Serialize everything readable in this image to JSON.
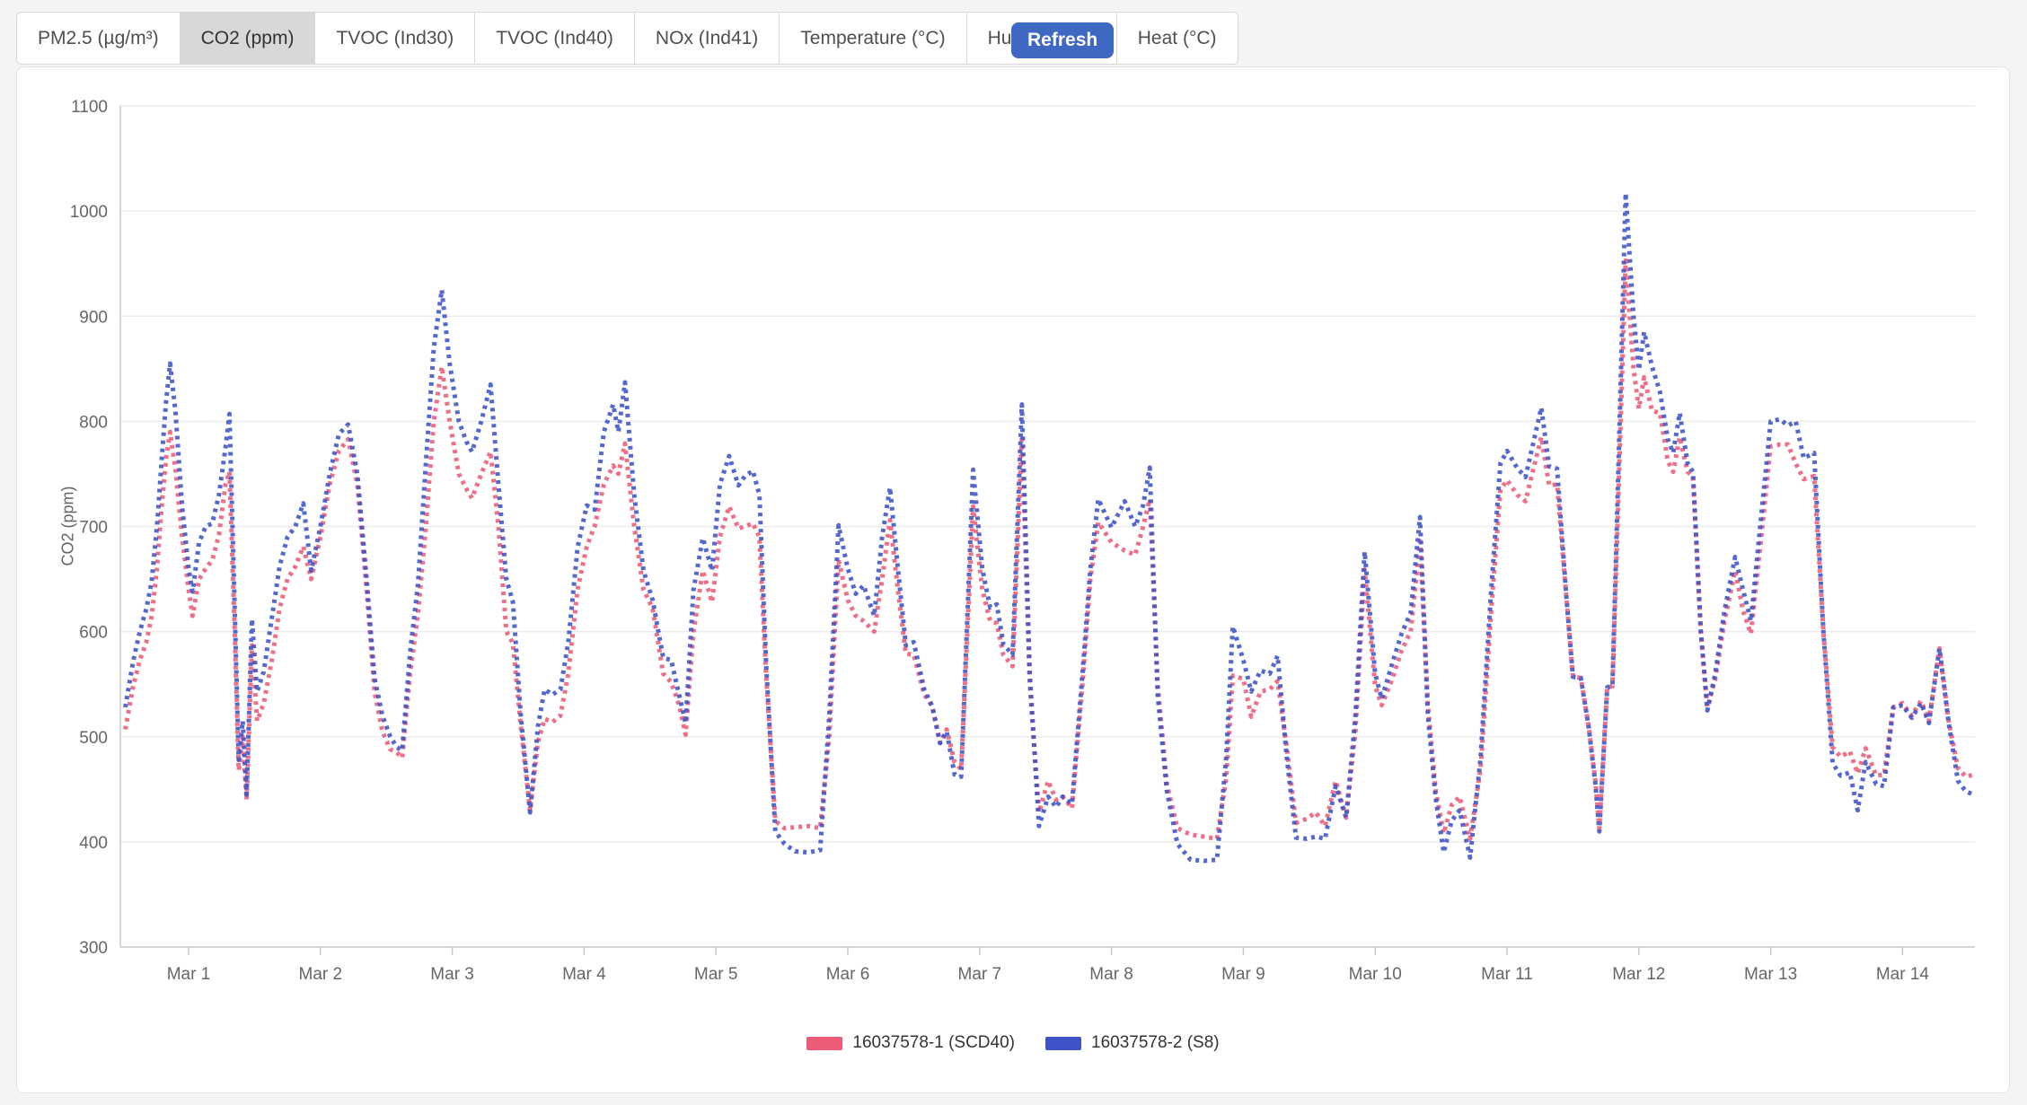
{
  "page": {
    "background": "#f4f4f5"
  },
  "toolbar": {
    "tabs": [
      {
        "label": "PM2.5 (µg/m³)",
        "active": false
      },
      {
        "label": "CO2 (ppm)",
        "active": true
      },
      {
        "label": "TVOC (Ind30)",
        "active": false
      },
      {
        "label": "TVOC (Ind40)",
        "active": false
      },
      {
        "label": "NOx (Ind41)",
        "active": false
      },
      {
        "label": "Temperature (°C)",
        "active": false
      },
      {
        "label": "Humidity (%)",
        "active": false
      },
      {
        "label": "Heat (°C)",
        "active": false
      }
    ],
    "refresh_label": "Refresh",
    "refresh_color": "#3e68c2"
  },
  "chart_data": {
    "type": "line",
    "title": "",
    "xlabel": "",
    "ylabel": "CO2 (ppm)",
    "ylim": [
      300,
      1100
    ],
    "y_ticks": [
      300,
      400,
      500,
      600,
      700,
      800,
      900,
      1000,
      1100
    ],
    "x_ticks": [
      {
        "t": 1,
        "label": "Mar 1"
      },
      {
        "t": 2,
        "label": "Mar 2"
      },
      {
        "t": 3,
        "label": "Mar 3"
      },
      {
        "t": 4,
        "label": "Mar 4"
      },
      {
        "t": 5,
        "label": "Mar 5"
      },
      {
        "t": 6,
        "label": "Mar 6"
      },
      {
        "t": 7,
        "label": "Mar 7"
      },
      {
        "t": 8,
        "label": "Mar 8"
      },
      {
        "t": 9,
        "label": "Mar 9"
      },
      {
        "t": 10,
        "label": "Mar 10"
      },
      {
        "t": 11,
        "label": "Mar 11"
      },
      {
        "t": 12,
        "label": "Mar 12"
      },
      {
        "t": 13,
        "label": "Mar 13"
      },
      {
        "t": 14,
        "label": "Mar 14"
      }
    ],
    "x_range": [
      0.52,
      14.54
    ],
    "grid": true,
    "legend_position": "bottom",
    "line_style": "dotted",
    "series_meta": [
      {
        "name": "16037578-1 (SCD40)",
        "color": "#ec5c78"
      },
      {
        "name": "16037578-2 (S8)",
        "color": "#3e53c6"
      }
    ],
    "columns": [
      "day_of_march",
      "scd40_ppm",
      "s8_ppm"
    ],
    "points": [
      [
        0.52,
        507,
        528
      ],
      [
        0.58,
        548,
        572
      ],
      [
        0.63,
        573,
        600
      ],
      [
        0.68,
        590,
        622
      ],
      [
        0.72,
        615,
        648
      ],
      [
        0.76,
        660,
        700
      ],
      [
        0.8,
        725,
        770
      ],
      [
        0.83,
        765,
        820
      ],
      [
        0.86,
        790,
        855
      ],
      [
        0.9,
        755,
        810
      ],
      [
        0.95,
        690,
        720
      ],
      [
        1.0,
        640,
        660
      ],
      [
        1.03,
        615,
        638
      ],
      [
        1.08,
        650,
        685
      ],
      [
        1.13,
        660,
        700
      ],
      [
        1.18,
        668,
        703
      ],
      [
        1.23,
        692,
        730
      ],
      [
        1.28,
        740,
        775
      ],
      [
        1.31,
        752,
        807
      ],
      [
        1.35,
        600,
        620
      ],
      [
        1.38,
        468,
        478
      ],
      [
        1.41,
        500,
        515
      ],
      [
        1.44,
        440,
        445
      ],
      [
        1.48,
        587,
        612
      ],
      [
        1.52,
        515,
        543
      ],
      [
        1.57,
        532,
        562
      ],
      [
        1.63,
        572,
        612
      ],
      [
        1.69,
        622,
        662
      ],
      [
        1.75,
        650,
        690
      ],
      [
        1.81,
        662,
        700
      ],
      [
        1.87,
        681,
        722
      ],
      [
        1.93,
        650,
        658
      ],
      [
        2.0,
        690,
        700
      ],
      [
        2.07,
        740,
        750
      ],
      [
        2.14,
        772,
        788
      ],
      [
        2.21,
        783,
        797
      ],
      [
        2.28,
        740,
        750
      ],
      [
        2.35,
        640,
        650
      ],
      [
        2.41,
        543,
        556
      ],
      [
        2.47,
        505,
        520
      ],
      [
        2.53,
        488,
        500
      ],
      [
        2.58,
        485,
        490
      ],
      [
        2.62,
        480,
        487
      ],
      [
        2.68,
        560,
        580
      ],
      [
        2.74,
        617,
        645
      ],
      [
        2.8,
        700,
        760
      ],
      [
        2.86,
        800,
        870
      ],
      [
        2.92,
        852,
        925
      ],
      [
        2.98,
        800,
        855
      ],
      [
        3.05,
        750,
        800
      ],
      [
        3.11,
        735,
        780
      ],
      [
        3.15,
        727,
        771
      ],
      [
        3.22,
        750,
        800
      ],
      [
        3.29,
        771,
        835
      ],
      [
        3.35,
        700,
        740
      ],
      [
        3.41,
        600,
        650
      ],
      [
        3.46,
        589,
        628
      ],
      [
        3.52,
        510,
        520
      ],
      [
        3.59,
        430,
        428
      ],
      [
        3.65,
        495,
        510
      ],
      [
        3.7,
        517,
        545
      ],
      [
        3.76,
        514,
        540
      ],
      [
        3.82,
        520,
        545
      ],
      [
        3.88,
        560,
        590
      ],
      [
        3.95,
        640,
        680
      ],
      [
        4.02,
        681,
        720
      ],
      [
        4.08,
        700,
        716
      ],
      [
        4.15,
        740,
        790
      ],
      [
        4.22,
        758,
        816
      ],
      [
        4.26,
        750,
        790
      ],
      [
        4.31,
        779,
        837
      ],
      [
        4.38,
        700,
        730
      ],
      [
        4.45,
        640,
        658
      ],
      [
        4.52,
        622,
        630
      ],
      [
        4.6,
        560,
        575
      ],
      [
        4.66,
        552,
        573
      ],
      [
        4.72,
        530,
        540
      ],
      [
        4.77,
        502,
        513
      ],
      [
        4.83,
        600,
        640
      ],
      [
        4.9,
        658,
        689
      ],
      [
        4.97,
        628,
        658
      ],
      [
        5.03,
        690,
        740
      ],
      [
        5.1,
        719,
        767
      ],
      [
        5.17,
        698,
        739
      ],
      [
        5.22,
        700,
        748
      ],
      [
        5.28,
        703,
        753
      ],
      [
        5.33,
        690,
        730
      ],
      [
        5.38,
        560,
        570
      ],
      [
        5.45,
        420,
        410
      ],
      [
        5.52,
        413,
        398
      ],
      [
        5.6,
        414,
        391
      ],
      [
        5.7,
        415,
        390
      ],
      [
        5.79,
        413,
        392
      ],
      [
        5.86,
        500,
        520
      ],
      [
        5.93,
        668,
        701
      ],
      [
        6.0,
        630,
        660
      ],
      [
        6.06,
        615,
        636
      ],
      [
        6.12,
        610,
        644
      ],
      [
        6.2,
        600,
        615
      ],
      [
        6.26,
        650,
        690
      ],
      [
        6.32,
        706,
        737
      ],
      [
        6.38,
        640,
        660
      ],
      [
        6.44,
        579,
        587
      ],
      [
        6.5,
        578,
        590
      ],
      [
        6.58,
        540,
        545
      ],
      [
        6.64,
        529,
        529
      ],
      [
        6.7,
        494,
        494
      ],
      [
        6.75,
        507,
        505
      ],
      [
        6.81,
        476,
        464
      ],
      [
        6.86,
        469,
        462
      ],
      [
        6.95,
        719,
        754
      ],
      [
        7.02,
        640,
        660
      ],
      [
        7.08,
        610,
        623
      ],
      [
        7.13,
        608,
        626
      ],
      [
        7.18,
        578,
        588
      ],
      [
        7.25,
        567,
        578
      ],
      [
        7.32,
        783,
        816
      ],
      [
        7.38,
        550,
        560
      ],
      [
        7.45,
        428,
        415
      ],
      [
        7.52,
        458,
        443
      ],
      [
        7.58,
        440,
        433
      ],
      [
        7.63,
        443,
        443
      ],
      [
        7.7,
        432,
        436
      ],
      [
        7.78,
        550,
        560
      ],
      [
        7.84,
        650,
        660
      ],
      [
        7.9,
        704,
        726
      ],
      [
        8.0,
        685,
        699
      ],
      [
        8.1,
        677,
        724
      ],
      [
        8.18,
        673,
        700
      ],
      [
        8.24,
        700,
        720
      ],
      [
        8.29,
        726,
        756
      ],
      [
        8.35,
        550,
        540
      ],
      [
        8.42,
        455,
        448
      ],
      [
        8.5,
        413,
        398
      ],
      [
        8.6,
        407,
        383
      ],
      [
        8.7,
        405,
        382
      ],
      [
        8.8,
        403,
        383
      ],
      [
        8.87,
        460,
        480
      ],
      [
        8.92,
        558,
        605
      ],
      [
        9.0,
        555,
        573
      ],
      [
        9.06,
        519,
        543
      ],
      [
        9.13,
        543,
        563
      ],
      [
        9.2,
        545,
        560
      ],
      [
        9.26,
        553,
        577
      ],
      [
        9.33,
        490,
        480
      ],
      [
        9.4,
        418,
        404
      ],
      [
        9.48,
        422,
        403
      ],
      [
        9.55,
        428,
        405
      ],
      [
        9.62,
        415,
        403
      ],
      [
        9.7,
        458,
        453
      ],
      [
        9.78,
        423,
        423
      ],
      [
        9.85,
        505,
        520
      ],
      [
        9.92,
        659,
        676
      ],
      [
        10.0,
        548,
        560
      ],
      [
        10.05,
        530,
        536
      ],
      [
        10.13,
        555,
        570
      ],
      [
        10.2,
        582,
        598
      ],
      [
        10.27,
        600,
        618
      ],
      [
        10.34,
        686,
        709
      ],
      [
        10.4,
        530,
        520
      ],
      [
        10.46,
        448,
        441
      ],
      [
        10.52,
        408,
        390
      ],
      [
        10.58,
        435,
        420
      ],
      [
        10.64,
        443,
        430
      ],
      [
        10.72,
        403,
        385
      ],
      [
        10.8,
        470,
        480
      ],
      [
        10.88,
        620,
        640
      ],
      [
        10.95,
        735,
        760
      ],
      [
        11.0,
        744,
        772
      ],
      [
        11.08,
        730,
        755
      ],
      [
        11.14,
        724,
        747
      ],
      [
        11.2,
        755,
        780
      ],
      [
        11.26,
        785,
        813
      ],
      [
        11.32,
        739,
        757
      ],
      [
        11.38,
        740,
        755
      ],
      [
        11.45,
        633,
        633
      ],
      [
        11.5,
        557,
        557
      ],
      [
        11.56,
        556,
        556
      ],
      [
        11.62,
        509,
        509
      ],
      [
        11.67,
        458,
        455
      ],
      [
        11.7,
        413,
        410
      ],
      [
        11.76,
        547,
        547
      ],
      [
        11.8,
        548,
        548
      ],
      [
        11.85,
        750,
        780
      ],
      [
        11.9,
        953,
        1017
      ],
      [
        11.96,
        850,
        900
      ],
      [
        12.0,
        812,
        849
      ],
      [
        12.04,
        842,
        885
      ],
      [
        12.1,
        810,
        852
      ],
      [
        12.16,
        808,
        828
      ],
      [
        12.22,
        762,
        783
      ],
      [
        12.26,
        752,
        770
      ],
      [
        12.31,
        785,
        808
      ],
      [
        12.37,
        752,
        760
      ],
      [
        12.41,
        748,
        752
      ],
      [
        12.47,
        600,
        600
      ],
      [
        12.52,
        528,
        525
      ],
      [
        12.58,
        555,
        560
      ],
      [
        12.65,
        610,
        620
      ],
      [
        12.73,
        658,
        671
      ],
      [
        12.79,
        620,
        640
      ],
      [
        12.85,
        598,
        610
      ],
      [
        12.92,
        680,
        700
      ],
      [
        13.0,
        776,
        800
      ],
      [
        13.07,
        778,
        802
      ],
      [
        13.13,
        778,
        796
      ],
      [
        13.19,
        760,
        800
      ],
      [
        13.25,
        745,
        765
      ],
      [
        13.33,
        748,
        770
      ],
      [
        13.4,
        600,
        600
      ],
      [
        13.47,
        490,
        475
      ],
      [
        13.53,
        481,
        463
      ],
      [
        13.6,
        486,
        466
      ],
      [
        13.66,
        465,
        430
      ],
      [
        13.72,
        489,
        476
      ],
      [
        13.8,
        463,
        455
      ],
      [
        13.86,
        464,
        453
      ],
      [
        13.93,
        528,
        528
      ],
      [
        14.0,
        532,
        530
      ],
      [
        14.07,
        520,
        518
      ],
      [
        14.14,
        534,
        532
      ],
      [
        14.2,
        515,
        513
      ],
      [
        14.28,
        584,
        584
      ],
      [
        14.35,
        515,
        513
      ],
      [
        14.42,
        470,
        458
      ],
      [
        14.48,
        462,
        448
      ],
      [
        14.54,
        464,
        445
      ]
    ]
  }
}
